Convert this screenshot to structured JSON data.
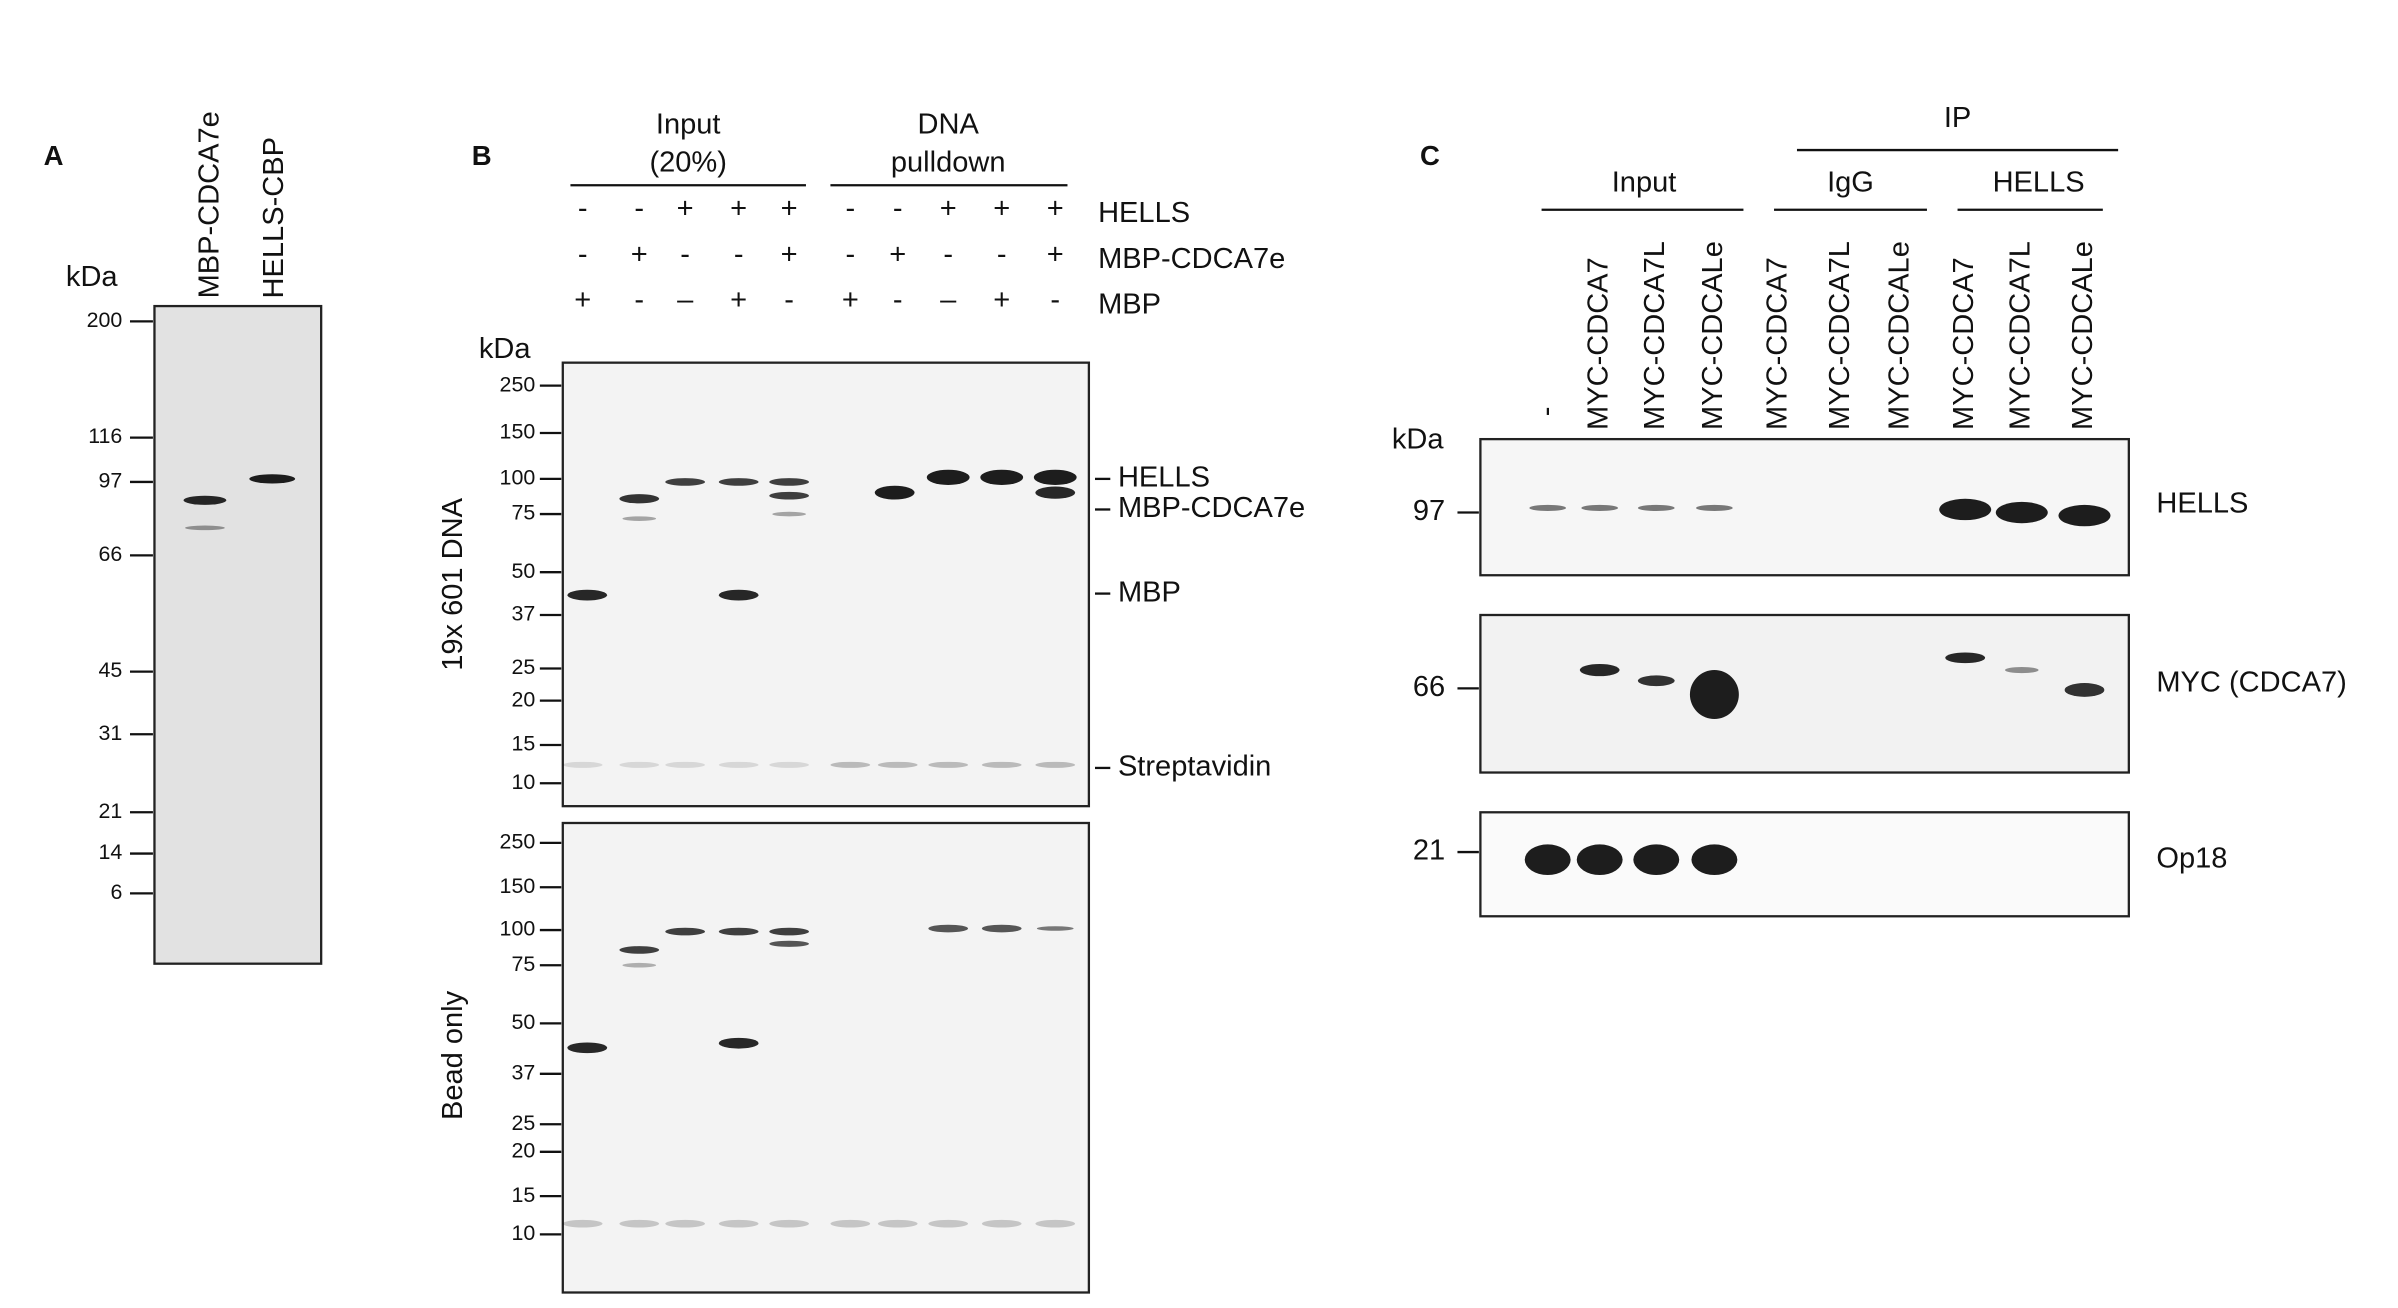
{
  "panel_a": {
    "label": "A",
    "lanes": [
      "MBP-CDCA7e",
      "HELLS-CBP"
    ],
    "unit": "kDa",
    "markers": [
      "200",
      "116",
      "97",
      "66",
      "45",
      "31",
      "21",
      "14",
      "6"
    ]
  },
  "panel_b": {
    "label": "B",
    "groups": [
      [
        "Input",
        "(20%)"
      ],
      [
        "DNA",
        "pulldown"
      ]
    ],
    "rows": [
      {
        "name": "HELLS",
        "signs": [
          "-",
          "-",
          "+",
          "+",
          "+",
          "-",
          "-",
          "+",
          "+",
          "+"
        ]
      },
      {
        "name": "MBP-CDCA7e",
        "signs": [
          "-",
          "+",
          "-",
          "-",
          "+",
          "-",
          "+",
          "-",
          "-",
          "+"
        ]
      },
      {
        "name": "MBP",
        "signs": [
          "+",
          "-",
          "–",
          "+",
          "-",
          "+",
          "-",
          "–",
          "+",
          "-"
        ]
      }
    ],
    "unit": "kDa",
    "markers": [
      "250",
      "150",
      "100",
      "75",
      "50",
      "37",
      "25",
      "20",
      "15",
      "10"
    ],
    "gels": [
      "19x 601 DNA",
      "Bead only"
    ],
    "band_labels": [
      "HELLS",
      "MBP-CDCA7e",
      "MBP",
      "Streptavidin"
    ]
  },
  "panel_c": {
    "label": "C",
    "ip": "IP",
    "groups": [
      "Input",
      "IgG",
      "HELLS"
    ],
    "lanes": [
      "-",
      "MYC-CDCA7",
      "MYC-CDCA7L",
      "MYC-CDCALe",
      "MYC-CDCA7",
      "MYC-CDCA7L",
      "MYC-CDCALe",
      "MYC-CDCA7",
      "MYC-CDCA7L",
      "MYC-CDCALe"
    ],
    "unit": "kDa",
    "blots": [
      {
        "marker": "97",
        "name": "HELLS"
      },
      {
        "marker": "66",
        "name": "MYC (CDCA7)"
      },
      {
        "marker": "21",
        "name": "Op18"
      }
    ]
  }
}
